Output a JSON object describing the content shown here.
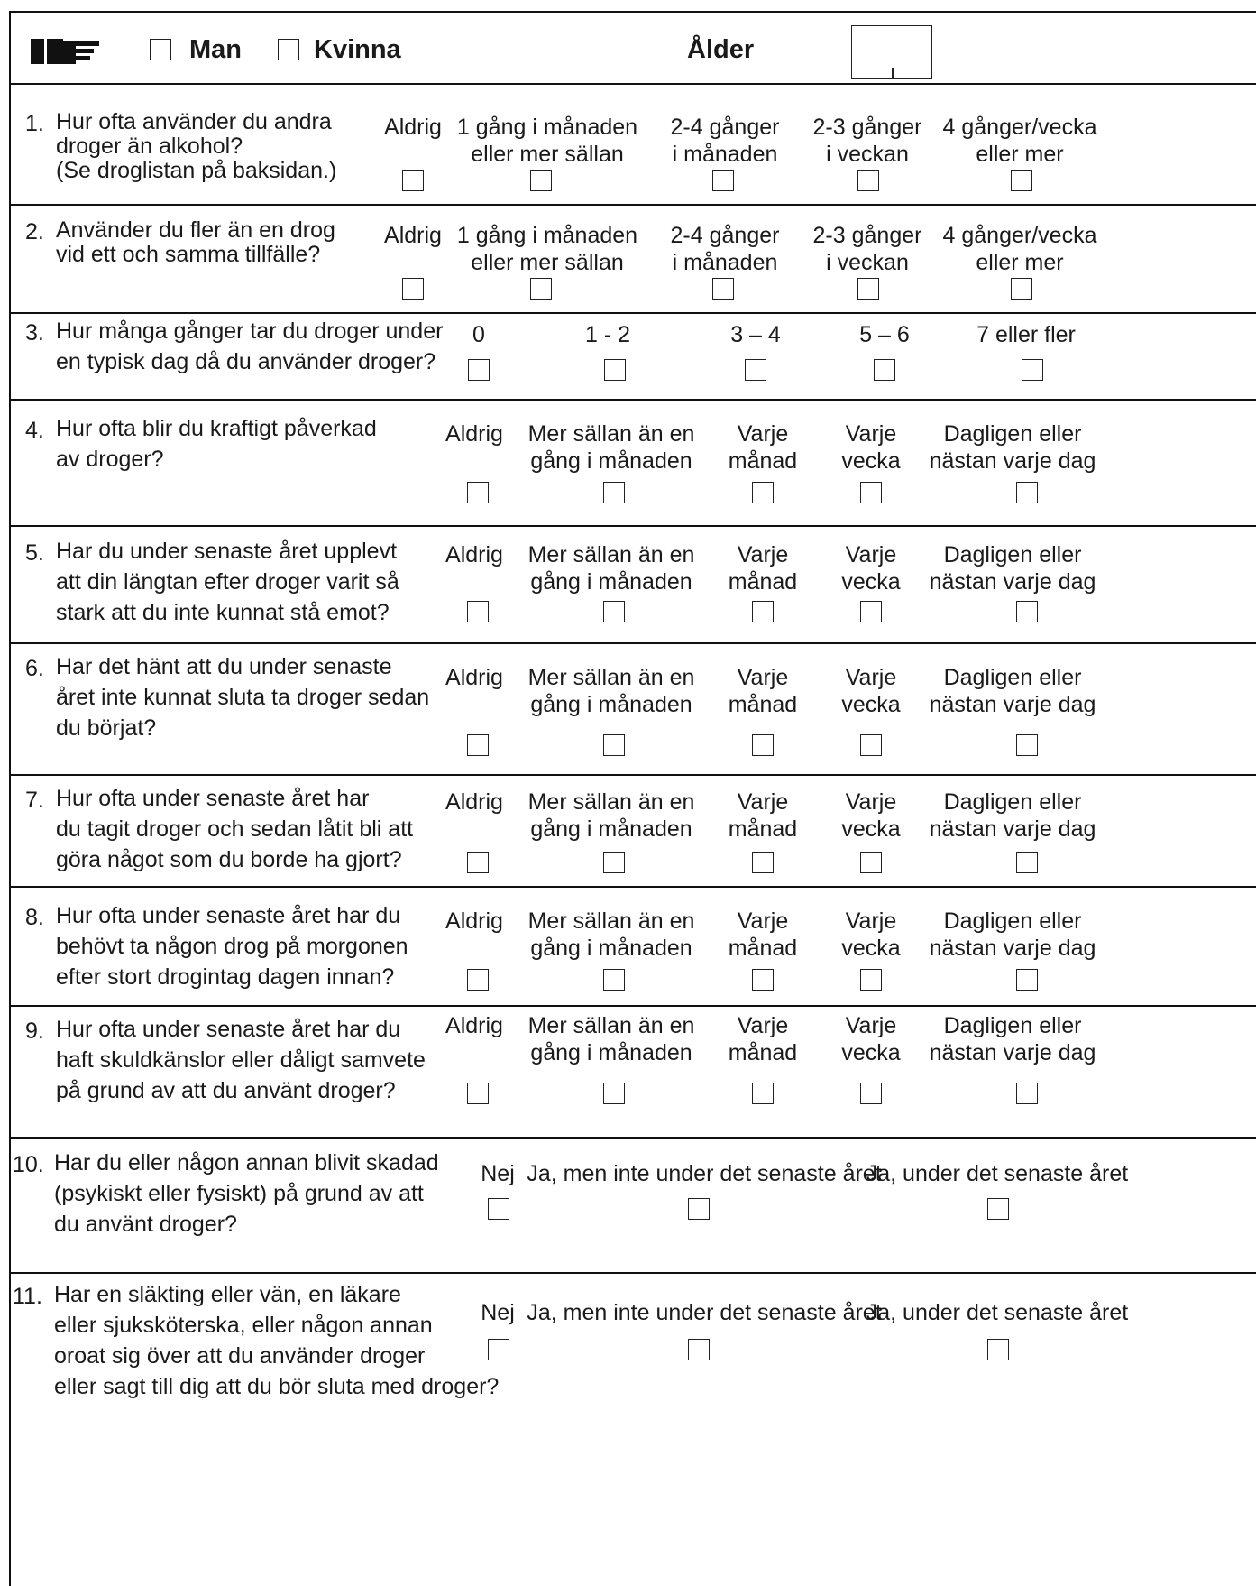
{
  "header": {
    "gender_options": [
      "Man",
      "Kvinna"
    ],
    "age_label": "Ålder"
  },
  "questions": [
    {
      "number": "1.",
      "text": [
        "Hur ofta använder du andra",
        "droger än alkohol?",
        "(Se droglistan på baksidan.)"
      ],
      "options": [
        [
          "Aldrig"
        ],
        [
          "1 gång i månaden",
          "eller mer sällan"
        ],
        [
          "2-4 gånger",
          "i månaden"
        ],
        [
          "2-3 gånger",
          "i veckan"
        ],
        [
          "4 gånger/vecka",
          "eller mer"
        ]
      ]
    },
    {
      "number": "2.",
      "text": [
        "Använder du fler än en drog",
        "vid ett och samma tillfälle?"
      ],
      "options": [
        [
          "Aldrig"
        ],
        [
          "1 gång i månaden",
          "eller mer sällan"
        ],
        [
          "2-4 gånger",
          "i månaden"
        ],
        [
          "2-3 gånger",
          "i veckan"
        ],
        [
          "4 gånger/vecka",
          "eller mer"
        ]
      ]
    },
    {
      "number": "3.",
      "text": [
        "Hur många gånger tar du droger under",
        "en typisk dag då du använder droger?"
      ],
      "options": [
        [
          "0"
        ],
        [
          "1 - 2"
        ],
        [
          "3 – 4"
        ],
        [
          "5 – 6"
        ],
        [
          "7 eller fler"
        ]
      ]
    },
    {
      "number": "4.",
      "text": [
        "Hur ofta blir du kraftigt påverkad",
        "av droger?"
      ],
      "options": [
        [
          "Aldrig"
        ],
        [
          "Mer sällan än en",
          "gång i månaden"
        ],
        [
          "Varje",
          "månad"
        ],
        [
          "Varje",
          "vecka"
        ],
        [
          "Dagligen eller",
          "nästan varje dag"
        ]
      ]
    },
    {
      "number": "5.",
      "text": [
        "Har du under senaste året upplevt",
        "att din längtan efter droger varit så",
        "stark att du inte kunnat stå emot?"
      ],
      "options": [
        [
          "Aldrig"
        ],
        [
          "Mer sällan än en",
          "gång i månaden"
        ],
        [
          "Varje",
          "månad"
        ],
        [
          "Varje",
          "vecka"
        ],
        [
          "Dagligen eller",
          "nästan varje dag"
        ]
      ]
    },
    {
      "number": "6.",
      "text": [
        "Har det hänt att du under senaste",
        "året inte kunnat sluta ta droger sedan",
        "du börjat?"
      ],
      "options": [
        [
          "Aldrig"
        ],
        [
          "Mer sällan än en",
          "gång i månaden"
        ],
        [
          "Varje",
          "månad"
        ],
        [
          "Varje",
          "vecka"
        ],
        [
          "Dagligen eller",
          "nästan varje dag"
        ]
      ]
    },
    {
      "number": "7.",
      "text": [
        "Hur ofta under senaste året har",
        "du tagit droger och sedan låtit bli att",
        "göra något som du borde ha gjort?"
      ],
      "options": [
        [
          "Aldrig"
        ],
        [
          "Mer sällan än en",
          "gång i månaden"
        ],
        [
          "Varje",
          "månad"
        ],
        [
          "Varje",
          "vecka"
        ],
        [
          "Dagligen eller",
          "nästan varje dag"
        ]
      ]
    },
    {
      "number": "8.",
      "text": [
        "Hur ofta under senaste året har du",
        "behövt ta någon drog på morgonen",
        "efter stort drogintag dagen innan?"
      ],
      "options": [
        [
          "Aldrig"
        ],
        [
          "Mer sällan än en",
          "gång i månaden"
        ],
        [
          "Varje",
          "månad"
        ],
        [
          "Varje",
          "vecka"
        ],
        [
          "Dagligen eller",
          "nästan varje dag"
        ]
      ]
    },
    {
      "number": "9.",
      "text": [
        "Hur ofta under senaste året har du",
        "haft skuldkänslor eller dåligt samvete",
        "på grund av att du använt droger?"
      ],
      "options": [
        [
          "Aldrig"
        ],
        [
          "Mer sällan än en",
          "gång i månaden"
        ],
        [
          "Varje",
          "månad"
        ],
        [
          "Varje",
          "vecka"
        ],
        [
          "Dagligen eller",
          "nästan varje dag"
        ]
      ]
    },
    {
      "number": "10.",
      "text": [
        "Har du eller någon annan blivit skadad",
        "(psykiskt eller fysiskt) på grund av att",
        "du använt droger?"
      ],
      "options": [
        [
          "Nej"
        ],
        [
          "Ja, men inte under det senaste året"
        ],
        [
          "Ja, under det senaste året"
        ]
      ]
    },
    {
      "number": "11.",
      "text": [
        "Har en släkting eller vän, en läkare",
        "eller sjuksköterska, eller någon annan",
        "oroat sig över att du använder droger",
        "eller sagt till dig att du bör sluta med droger?"
      ],
      "options": [
        [
          "Nej"
        ],
        [
          "Ja, men inte under det senaste året"
        ],
        [
          "Ja, under det senaste året"
        ]
      ]
    }
  ]
}
